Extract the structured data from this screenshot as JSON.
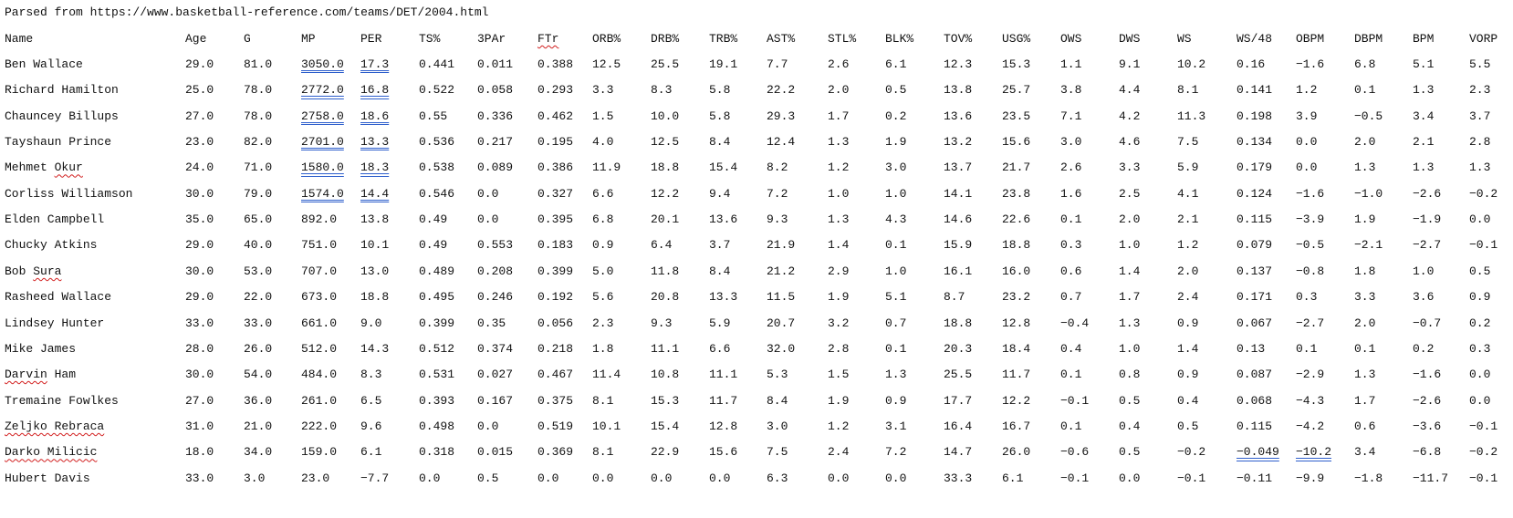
{
  "source_text": "Parsed from https://www.basketball-reference.com/teams/DET/2004.html",
  "columns": [
    "Name",
    "Age",
    "G",
    "MP",
    "PER",
    "TS%",
    "3PAr",
    "FTr",
    "ORB%",
    "DRB%",
    "TRB%",
    "AST%",
    "STL%",
    "BLK%",
    "TOV%",
    "USG%",
    "OWS",
    "DWS",
    "WS",
    "WS/48",
    "OBPM",
    "DBPM",
    "BPM",
    "VORP"
  ],
  "rows": [
    [
      "Ben Wallace",
      "29.0",
      "81.0",
      "3050.0",
      "17.3",
      "0.441",
      "0.011",
      "0.388",
      "12.5",
      "25.5",
      "19.1",
      "7.7",
      "2.6",
      "6.1",
      "12.3",
      "15.3",
      "1.1",
      "9.1",
      "10.2",
      "0.16",
      "−1.6",
      "6.8",
      "5.1",
      "5.5"
    ],
    [
      "Richard Hamilton",
      "25.0",
      "78.0",
      "2772.0",
      "16.8",
      "0.522",
      "0.058",
      "0.293",
      "3.3",
      "8.3",
      "5.8",
      "22.2",
      "2.0",
      "0.5",
      "13.8",
      "25.7",
      "3.8",
      "4.4",
      "8.1",
      "0.141",
      "1.2",
      "0.1",
      "1.3",
      "2.3"
    ],
    [
      "Chauncey Billups",
      "27.0",
      "78.0",
      "2758.0",
      "18.6",
      "0.55",
      "0.336",
      "0.462",
      "1.5",
      "10.0",
      "5.8",
      "29.3",
      "1.7",
      "0.2",
      "13.6",
      "23.5",
      "7.1",
      "4.2",
      "11.3",
      "0.198",
      "3.9",
      "−0.5",
      "3.4",
      "3.7"
    ],
    [
      "Tayshaun Prince",
      "23.0",
      "82.0",
      "2701.0",
      "13.3",
      "0.536",
      "0.217",
      "0.195",
      "4.0",
      "12.5",
      "8.4",
      "12.4",
      "1.3",
      "1.9",
      "13.2",
      "15.6",
      "3.0",
      "4.6",
      "7.5",
      "0.134",
      "0.0",
      "2.0",
      "2.1",
      "2.8"
    ],
    [
      "Mehmet Okur",
      "24.0",
      "71.0",
      "1580.0",
      "18.3",
      "0.538",
      "0.089",
      "0.386",
      "11.9",
      "18.8",
      "15.4",
      "8.2",
      "1.2",
      "3.0",
      "13.7",
      "21.7",
      "2.6",
      "3.3",
      "5.9",
      "0.179",
      "0.0",
      "1.3",
      "1.3",
      "1.3"
    ],
    [
      "Corliss Williamson",
      "30.0",
      "79.0",
      "1574.0",
      "14.4",
      "0.546",
      "0.0",
      "0.327",
      "6.6",
      "12.2",
      "9.4",
      "7.2",
      "1.0",
      "1.0",
      "14.1",
      "23.8",
      "1.6",
      "2.5",
      "4.1",
      "0.124",
      "−1.6",
      "−1.0",
      "−2.6",
      "−0.2"
    ],
    [
      "Elden Campbell",
      "35.0",
      "65.0",
      "892.0",
      "13.8",
      "0.49",
      "0.0",
      "0.395",
      "6.8",
      "20.1",
      "13.6",
      "9.3",
      "1.3",
      "4.3",
      "14.6",
      "22.6",
      "0.1",
      "2.0",
      "2.1",
      "0.115",
      "−3.9",
      "1.9",
      "−1.9",
      "0.0"
    ],
    [
      "Chucky Atkins",
      "29.0",
      "40.0",
      "751.0",
      "10.1",
      "0.49",
      "0.553",
      "0.183",
      "0.9",
      "6.4",
      "3.7",
      "21.9",
      "1.4",
      "0.1",
      "15.9",
      "18.8",
      "0.3",
      "1.0",
      "1.2",
      "0.079",
      "−0.5",
      "−2.1",
      "−2.7",
      "−0.1"
    ],
    [
      "Bob Sura",
      "30.0",
      "53.0",
      "707.0",
      "13.0",
      "0.489",
      "0.208",
      "0.399",
      "5.0",
      "11.8",
      "8.4",
      "21.2",
      "2.9",
      "1.0",
      "16.1",
      "16.0",
      "0.6",
      "1.4",
      "2.0",
      "0.137",
      "−0.8",
      "1.8",
      "1.0",
      "0.5"
    ],
    [
      "Rasheed Wallace",
      "29.0",
      "22.0",
      "673.0",
      "18.8",
      "0.495",
      "0.246",
      "0.192",
      "5.6",
      "20.8",
      "13.3",
      "11.5",
      "1.9",
      "5.1",
      "8.7",
      "23.2",
      "0.7",
      "1.7",
      "2.4",
      "0.171",
      "0.3",
      "3.3",
      "3.6",
      "0.9"
    ],
    [
      "Lindsey Hunter",
      "33.0",
      "33.0",
      "661.0",
      "9.0",
      "0.399",
      "0.35",
      "0.056",
      "2.3",
      "9.3",
      "5.9",
      "20.7",
      "3.2",
      "0.7",
      "18.8",
      "12.8",
      "−0.4",
      "1.3",
      "0.9",
      "0.067",
      "−2.7",
      "2.0",
      "−0.7",
      "0.2"
    ],
    [
      "Mike James",
      "28.0",
      "26.0",
      "512.0",
      "14.3",
      "0.512",
      "0.374",
      "0.218",
      "1.8",
      "11.1",
      "6.6",
      "32.0",
      "2.8",
      "0.1",
      "20.3",
      "18.4",
      "0.4",
      "1.0",
      "1.4",
      "0.13",
      "0.1",
      "0.1",
      "0.2",
      "0.3"
    ],
    [
      "Darvin Ham",
      "30.0",
      "54.0",
      "484.0",
      "8.3",
      "0.531",
      "0.027",
      "0.467",
      "11.4",
      "10.8",
      "11.1",
      "5.3",
      "1.5",
      "1.3",
      "25.5",
      "11.7",
      "0.1",
      "0.8",
      "0.9",
      "0.087",
      "−2.9",
      "1.3",
      "−1.6",
      "0.0"
    ],
    [
      "Tremaine Fowlkes",
      "27.0",
      "36.0",
      "261.0",
      "6.5",
      "0.393",
      "0.167",
      "0.375",
      "8.1",
      "15.3",
      "11.7",
      "8.4",
      "1.9",
      "0.9",
      "17.7",
      "12.2",
      "−0.1",
      "0.5",
      "0.4",
      "0.068",
      "−4.3",
      "1.7",
      "−2.6",
      "0.0"
    ],
    [
      "Zeljko Rebraca",
      "31.0",
      "21.0",
      "222.0",
      "9.6",
      "0.498",
      "0.0",
      "0.519",
      "10.1",
      "15.4",
      "12.8",
      "3.0",
      "1.2",
      "3.1",
      "16.4",
      "16.7",
      "0.1",
      "0.4",
      "0.5",
      "0.115",
      "−4.2",
      "0.6",
      "−3.6",
      "−0.1"
    ],
    [
      "Darko Milicic",
      "18.0",
      "34.0",
      "159.0",
      "6.1",
      "0.318",
      "0.015",
      "0.369",
      "8.1",
      "22.9",
      "15.6",
      "7.5",
      "2.4",
      "7.2",
      "14.7",
      "26.0",
      "−0.6",
      "0.5",
      "−0.2",
      "−0.049",
      "−10.2",
      "3.4",
      "−6.8",
      "−0.2"
    ],
    [
      "Hubert Davis",
      "33.0",
      "3.0",
      "23.0",
      "−7.7",
      "0.0",
      "0.5",
      "0.0",
      "0.0",
      "0.0",
      "0.0",
      "6.3",
      "0.0",
      "0.0",
      "33.3",
      "6.1",
      "−0.1",
      "0.0",
      "−0.1",
      "−0.11",
      "−9.9",
      "−1.8",
      "−11.7",
      "−0.1"
    ]
  ],
  "underline_color": "#2e5fcc",
  "squiggle_color": "#d22020"
}
